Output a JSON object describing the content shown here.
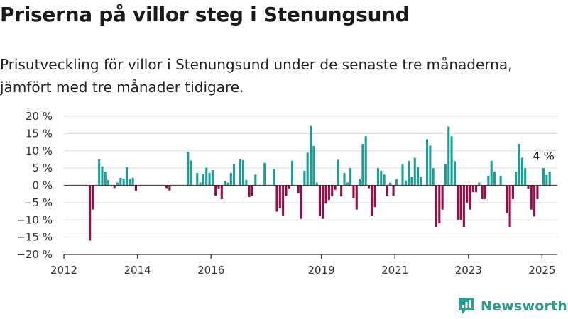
{
  "header": {
    "title": "Priserna på villor steg i Stenungsund",
    "subtitle": "Prisutveckling för villor i Stenungsund under de senaste tre månaderna, jämfört med tre månader tidigare."
  },
  "brand": {
    "name": "Newsworthy",
    "icon": "newsworthy-logo-icon"
  },
  "colors": {
    "positive": "#1a9e96",
    "negative": "#970d47",
    "grid": "#dddddd",
    "axis": "#333333",
    "brand": "#2a9d8f"
  },
  "chart_data": {
    "type": "bar",
    "x_unit": "month",
    "xlim": [
      "2012-01",
      "2025-06"
    ],
    "ylim": [
      -20,
      20
    ],
    "yticks": [
      20,
      15,
      10,
      5,
      0,
      -5,
      -10,
      -15,
      -20
    ],
    "ytick_labels": [
      "20 %",
      "15 %",
      "10 %",
      "5 %",
      "0 %",
      "−5 %",
      "−10 %",
      "−15 %",
      "−20 %"
    ],
    "xticks": [
      "2012",
      "2014",
      "2016",
      "2019",
      "2021",
      "2023",
      "2025"
    ],
    "grid": true,
    "annotation": {
      "text": "4 %",
      "month": "2025-01"
    },
    "series": [
      {
        "values": [
          [
            "2012-09",
            -16
          ],
          [
            "2012-10",
            -7
          ],
          [
            "2012-11",
            0
          ],
          [
            "2012-12",
            7.5
          ],
          [
            "2013-01",
            5.5
          ],
          [
            "2013-02",
            4
          ],
          [
            "2013-03",
            1.5
          ],
          [
            "2013-04",
            0
          ],
          [
            "2013-05",
            -0.8
          ],
          [
            "2013-06",
            0.8
          ],
          [
            "2013-07",
            2.2
          ],
          [
            "2013-08",
            1.8
          ],
          [
            "2013-09",
            5.3
          ],
          [
            "2013-10",
            1.8
          ],
          [
            "2013-11",
            2.2
          ],
          [
            "2013-12",
            -1.6
          ],
          [
            "2014-04",
            0
          ],
          [
            "2014-10",
            -0.8
          ],
          [
            "2014-11",
            -1.5
          ],
          [
            "2015-05",
            9.7
          ],
          [
            "2015-06",
            7.2
          ],
          [
            "2015-07",
            0
          ],
          [
            "2015-08",
            3.6
          ],
          [
            "2015-09",
            0.8
          ],
          [
            "2015-10",
            3.2
          ],
          [
            "2015-11",
            5.1
          ],
          [
            "2015-12",
            3.6
          ],
          [
            "2016-01",
            4.4
          ],
          [
            "2016-02",
            -3
          ],
          [
            "2016-03",
            -0.9
          ],
          [
            "2016-04",
            -4
          ],
          [
            "2016-05",
            1.3
          ],
          [
            "2016-06",
            0.8
          ],
          [
            "2016-07",
            3.6
          ],
          [
            "2016-08",
            6.1
          ],
          [
            "2016-09",
            0
          ],
          [
            "2016-10",
            7.6
          ],
          [
            "2016-11",
            7.3
          ],
          [
            "2016-12",
            1.6
          ],
          [
            "2017-01",
            -3.4
          ],
          [
            "2017-02",
            -3
          ],
          [
            "2017-03",
            3.1
          ],
          [
            "2017-04",
            0
          ],
          [
            "2017-05",
            0
          ],
          [
            "2017-06",
            6.5
          ],
          [
            "2017-07",
            0
          ],
          [
            "2017-08",
            0
          ],
          [
            "2017-09",
            4.7
          ],
          [
            "2017-10",
            -7.6
          ],
          [
            "2017-11",
            -6.7
          ],
          [
            "2017-12",
            -8.7
          ],
          [
            "2018-01",
            -3
          ],
          [
            "2018-02",
            -1
          ],
          [
            "2018-03",
            7.1
          ],
          [
            "2018-04",
            0
          ],
          [
            "2018-05",
            -2.2
          ],
          [
            "2018-06",
            -9.7
          ],
          [
            "2018-07",
            4.2
          ],
          [
            "2018-08",
            9.5
          ],
          [
            "2018-09",
            17.2
          ],
          [
            "2018-10",
            11.4
          ],
          [
            "2018-11",
            0.8
          ],
          [
            "2018-12",
            -8.9
          ],
          [
            "2019-01",
            -9.7
          ],
          [
            "2019-02",
            -5.3
          ],
          [
            "2019-03",
            -4.2
          ],
          [
            "2019-04",
            -3.2
          ],
          [
            "2019-05",
            -1.3
          ],
          [
            "2019-06",
            7.4
          ],
          [
            "2019-07",
            -3.2
          ],
          [
            "2019-08",
            3.6
          ],
          [
            "2019-09",
            0.8
          ],
          [
            "2019-10",
            5
          ],
          [
            "2019-11",
            -3.8
          ],
          [
            "2019-12",
            -7
          ],
          [
            "2020-01",
            1.8
          ],
          [
            "2020-02",
            12
          ],
          [
            "2020-03",
            14.2
          ],
          [
            "2020-04",
            -0.8
          ],
          [
            "2020-05",
            -8.9
          ],
          [
            "2020-06",
            -6.3
          ],
          [
            "2020-07",
            5
          ],
          [
            "2020-08",
            4.2
          ],
          [
            "2020-09",
            3.1
          ],
          [
            "2020-10",
            -3
          ],
          [
            "2020-11",
            0.8
          ],
          [
            "2020-12",
            -3
          ],
          [
            "2021-01",
            1.8
          ],
          [
            "2021-02",
            0
          ],
          [
            "2021-03",
            6
          ],
          [
            "2021-04",
            1.4
          ],
          [
            "2021-05",
            7.1
          ],
          [
            "2021-06",
            2.5
          ],
          [
            "2021-07",
            8
          ],
          [
            "2021-08",
            5.3
          ],
          [
            "2021-09",
            2.5
          ],
          [
            "2021-10",
            0
          ],
          [
            "2021-11",
            13.3
          ],
          [
            "2021-12",
            11.5
          ],
          [
            "2022-01",
            5
          ],
          [
            "2022-02",
            -12
          ],
          [
            "2022-03",
            -11
          ],
          [
            "2022-04",
            -7
          ],
          [
            "2022-05",
            6.1
          ],
          [
            "2022-06",
            17
          ],
          [
            "2022-07",
            14.2
          ],
          [
            "2022-08",
            7
          ],
          [
            "2022-09",
            -10
          ],
          [
            "2022-10",
            -10
          ],
          [
            "2022-11",
            -12
          ],
          [
            "2022-12",
            -5
          ],
          [
            "2023-01",
            -7
          ],
          [
            "2023-02",
            -2
          ],
          [
            "2023-03",
            -2
          ],
          [
            "2023-04",
            0.8
          ],
          [
            "2023-05",
            -4
          ],
          [
            "2023-06",
            -4
          ],
          [
            "2023-07",
            2.8
          ],
          [
            "2023-08",
            7.1
          ],
          [
            "2023-09",
            4
          ],
          [
            "2023-10",
            0
          ],
          [
            "2023-11",
            2.8
          ],
          [
            "2023-12",
            0
          ],
          [
            "2024-01",
            -8
          ],
          [
            "2024-02",
            -12
          ],
          [
            "2024-03",
            -4
          ],
          [
            "2024-04",
            4
          ],
          [
            "2024-05",
            12
          ],
          [
            "2024-06",
            8
          ],
          [
            "2024-07",
            5
          ],
          [
            "2024-08",
            -1
          ],
          [
            "2024-09",
            -7
          ],
          [
            "2024-10",
            -9
          ],
          [
            "2024-11",
            -4
          ],
          [
            "2024-12",
            0
          ],
          [
            "2025-01",
            5
          ],
          [
            "2025-02",
            3
          ],
          [
            "2025-03",
            4
          ]
        ]
      }
    ]
  }
}
